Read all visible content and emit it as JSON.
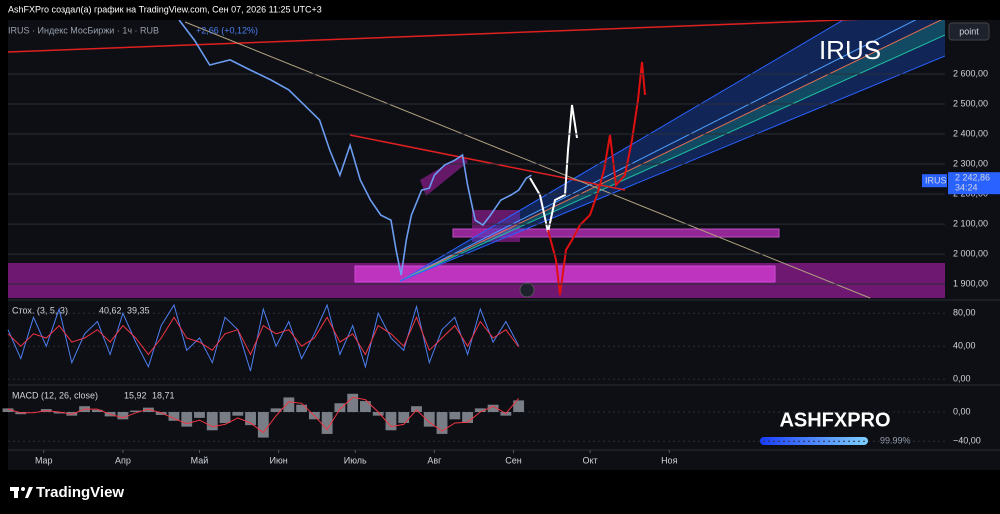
{
  "header": {
    "caption": "AshFXPro создал(а) график на TradingView.com, Сен 07, 2026 11:25 UTC+3",
    "scale_button": "point"
  },
  "footer": {
    "brand": "TradingView"
  },
  "badge": {
    "title": "ASHFXPRO",
    "level": {
      "value": 99.99,
      "label": "99.99%"
    }
  },
  "chart_data": [
    {
      "type": "line",
      "title": "IRUS · Индекс МосБиржи · 1ч · RUB",
      "change": "+2,66 (+0,12%)",
      "symbol": "IRUS",
      "last_price": {
        "value": 2242.86,
        "label": "2 242,86"
      },
      "countdown": "34:24",
      "color": "#6b9cf0",
      "x": [
        53,
        59,
        65,
        73,
        81,
        89,
        96,
        102,
        108,
        112,
        116,
        120,
        124,
        128,
        132,
        136,
        138,
        140,
        142,
        144,
        148,
        151,
        153,
        157,
        161,
        164,
        166,
        169,
        172,
        175,
        179,
        183,
        186,
        189,
        191
      ],
      "values": [
        2780,
        2713,
        2630,
        2647,
        2613,
        2580,
        2547,
        2497,
        2447,
        2347,
        2263,
        2363,
        2247,
        2180,
        2130,
        2113,
        2013,
        1930,
        2047,
        2130,
        2213,
        2220,
        2263,
        2297,
        2313,
        2330,
        2230,
        2113,
        2097,
        2130,
        2180,
        2197,
        2213,
        2253,
        2263
      ],
      "xlim": [
        -14,
        353
      ],
      "ylim": [
        1847,
        2780
      ],
      "xticks": [
        {
          "value": 0,
          "label": "Мар"
        },
        {
          "value": 31,
          "label": "Апр"
        },
        {
          "value": 61,
          "label": "Май"
        },
        {
          "value": 92,
          "label": "Июн"
        },
        {
          "value": 122,
          "label": "Июль"
        },
        {
          "value": 153,
          "label": "Авг"
        },
        {
          "value": 184,
          "label": "Сен"
        },
        {
          "value": 214,
          "label": "Окт"
        },
        {
          "value": 245,
          "label": "Ноя"
        }
      ],
      "yticks": [
        {
          "value": 1900,
          "label": "1 900,00"
        },
        {
          "value": 2000,
          "label": "2 000,00"
        },
        {
          "value": 2100,
          "label": "2 100,00"
        },
        {
          "value": 2200,
          "label": "2 200,00"
        },
        {
          "value": 2300,
          "label": "2 300,00"
        },
        {
          "value": 2400,
          "label": "2 400,00"
        },
        {
          "value": 2500,
          "label": "2 500,00"
        },
        {
          "value": 2600,
          "label": "2 600,00"
        }
      ]
    },
    {
      "type": "line",
      "title": "Стох. (3, 5, 3)",
      "readout": [
        {
          "value": 40.62,
          "label": "40,62"
        },
        {
          "value": 39.35,
          "label": "39,35"
        }
      ],
      "x": [
        -14,
        -9,
        -4,
        1,
        6,
        11,
        16,
        21,
        26,
        31,
        36,
        41,
        46,
        51,
        56,
        61,
        66,
        71,
        76,
        81,
        86,
        91,
        96,
        101,
        106,
        111,
        116,
        121,
        126,
        131,
        136,
        141,
        146,
        151,
        156,
        161,
        166,
        171,
        176,
        181,
        186
      ],
      "series": [
        {
          "color": "#4d7ff0",
          "values": [
            60,
            25,
            75,
            40,
            85,
            20,
            55,
            70,
            30,
            80,
            45,
            15,
            65,
            90,
            35,
            50,
            20,
            75,
            60,
            10,
            85,
            40,
            70,
            25,
            55,
            90,
            30,
            65,
            15,
            80,
            50,
            35,
            88,
            20,
            60,
            75,
            30,
            85,
            45,
            70,
            40.62
          ]
        },
        {
          "color": "#f23645",
          "values": [
            55,
            40,
            55,
            50,
            65,
            45,
            50,
            60,
            45,
            65,
            50,
            30,
            50,
            75,
            50,
            45,
            35,
            55,
            60,
            30,
            65,
            55,
            60,
            40,
            50,
            75,
            45,
            55,
            30,
            65,
            55,
            40,
            75,
            35,
            50,
            65,
            40,
            70,
            50,
            60,
            39.35
          ]
        }
      ],
      "xlim": [
        -14,
        353
      ],
      "ylim": [
        -7,
        96
      ],
      "yticks": [
        {
          "value": 0,
          "label": "0,00"
        },
        {
          "value": 40,
          "label": "40,00"
        },
        {
          "value": 80,
          "label": "80,00"
        }
      ]
    },
    {
      "type": "line",
      "title": "MACD (12, 26, close)",
      "readout": [
        {
          "value": 15.92,
          "label": "15,92"
        },
        {
          "value": 18.71,
          "label": "18,71"
        }
      ],
      "x": [
        -14,
        -9,
        -4,
        1,
        6,
        11,
        16,
        21,
        26,
        31,
        36,
        41,
        46,
        51,
        56,
        61,
        66,
        71,
        76,
        81,
        86,
        91,
        96,
        101,
        106,
        111,
        116,
        121,
        126,
        131,
        136,
        141,
        146,
        151,
        156,
        161,
        166,
        171,
        176,
        181,
        186
      ],
      "series": [
        {
          "color": "#9598a1",
          "kind": "histogram",
          "values": [
            5,
            -3,
            0,
            4,
            -2,
            -5,
            8,
            3,
            -6,
            -10,
            2,
            6,
            -4,
            -12,
            -20,
            -8,
            -25,
            -15,
            -5,
            -18,
            -35,
            5,
            20,
            10,
            -10,
            -30,
            12,
            25,
            15,
            -5,
            -25,
            -15,
            8,
            -20,
            -30,
            -10,
            -15,
            5,
            10,
            -5,
            15.92
          ]
        },
        {
          "color": "#f23645",
          "kind": "line",
          "values": [
            4,
            -1,
            -1,
            2,
            0,
            -3,
            4,
            4,
            -3,
            -8,
            -1,
            4,
            -1,
            -9,
            -16,
            -11,
            -20,
            -17,
            -8,
            -15,
            -28,
            -5,
            14,
            12,
            -5,
            -24,
            4,
            20,
            17,
            0,
            -20,
            -17,
            3,
            -14,
            -26,
            -15,
            -14,
            0,
            8,
            -2,
            18.71
          ]
        }
      ],
      "xlim": [
        -14,
        353
      ],
      "ylim": [
        -52,
        37
      ],
      "yticks": [
        {
          "value": -40,
          "label": "−40,00"
        },
        {
          "value": 0,
          "label": "0,00"
        }
      ]
    }
  ]
}
